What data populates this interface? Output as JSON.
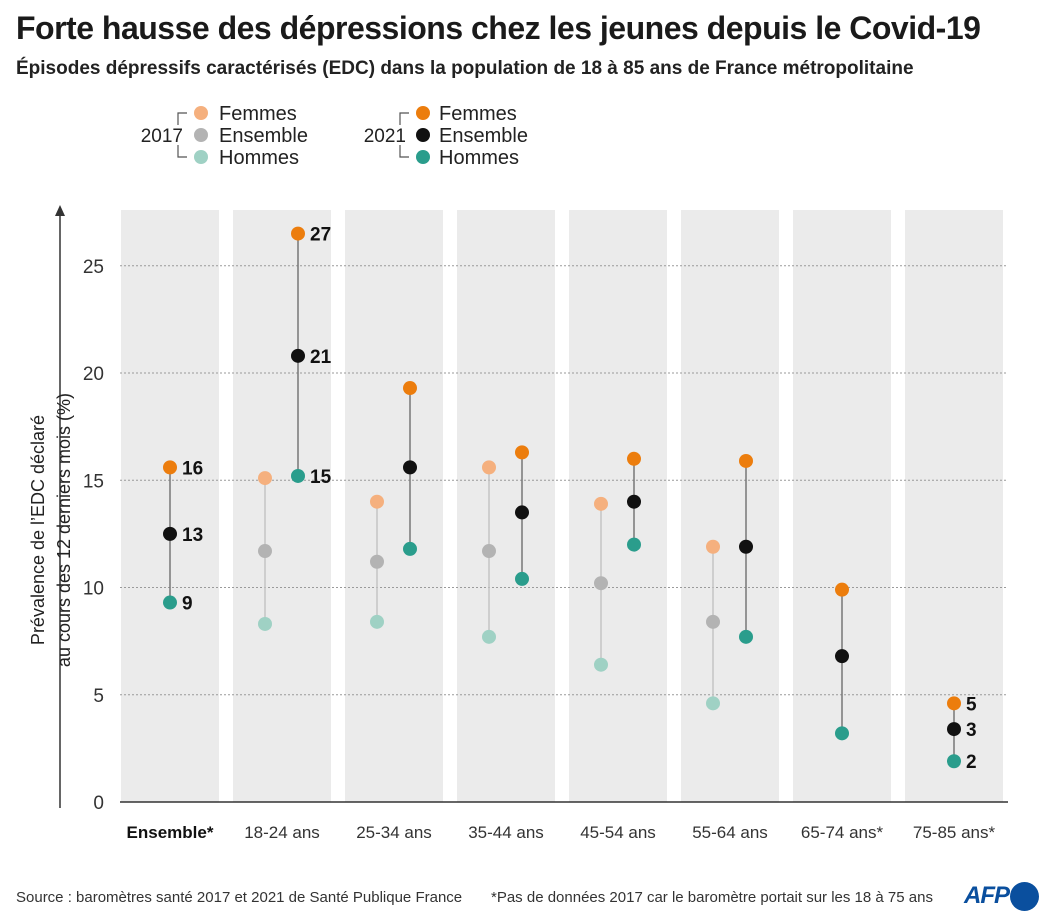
{
  "title": "Forte hausse des dépressions chez les jeunes depuis le Covid-19",
  "subtitle": "Épisodes dépressifs caractérisés (EDC) dans la population de 18 à 85 ans de France métropolitaine",
  "legend": {
    "groups": [
      {
        "year": "2017",
        "items": [
          {
            "label": "Femmes",
            "color": "#f5b07e"
          },
          {
            "label": "Ensemble",
            "color": "#b3b3b3"
          },
          {
            "label": "Hommes",
            "color": "#9fd1c4"
          }
        ]
      },
      {
        "year": "2021",
        "items": [
          {
            "label": "Femmes",
            "color": "#ec7d0d"
          },
          {
            "label": "Ensemble",
            "color": "#111111"
          },
          {
            "label": "Hommes",
            "color": "#2a9d8c"
          }
        ]
      }
    ]
  },
  "chart_data": {
    "type": "scatter",
    "ylabel_lines": [
      "Prévalence de l’EDC déclaré",
      "au cours des 12 derniers mois (%)"
    ],
    "ylim": [
      0,
      27
    ],
    "yticks": [
      0,
      5,
      10,
      15,
      20,
      25
    ],
    "grid": true,
    "categories": [
      "Ensemble*",
      "18-24 ans",
      "25-34 ans",
      "35-44 ans",
      "45-54 ans",
      "55-64 ans",
      "65-74 ans*",
      "75-85 ans*"
    ],
    "series": [
      {
        "name": "2017 Femmes",
        "color": "#f5b07e",
        "values": [
          null,
          15.1,
          14.0,
          15.6,
          13.9,
          11.9,
          null,
          null
        ]
      },
      {
        "name": "2017 Ensemble",
        "color": "#b3b3b3",
        "values": [
          null,
          11.7,
          11.2,
          11.7,
          10.2,
          8.4,
          null,
          null
        ]
      },
      {
        "name": "2017 Hommes",
        "color": "#9fd1c4",
        "values": [
          null,
          8.3,
          8.4,
          7.7,
          6.4,
          4.6,
          null,
          null
        ]
      },
      {
        "name": "2021 Femmes",
        "color": "#ec7d0d",
        "values": [
          15.6,
          26.5,
          19.3,
          16.3,
          16.0,
          15.9,
          9.9,
          4.6
        ]
      },
      {
        "name": "2021 Ensemble",
        "color": "#111111",
        "values": [
          12.5,
          20.8,
          15.6,
          13.5,
          14.0,
          11.9,
          6.8,
          3.4
        ]
      },
      {
        "name": "2021 Hommes",
        "color": "#2a9d8c",
        "values": [
          9.3,
          15.2,
          11.8,
          10.4,
          12.0,
          7.7,
          3.2,
          1.9
        ]
      }
    ],
    "data_labels": [
      {
        "category": "Ensemble*",
        "series": "2021 Femmes",
        "text": "16"
      },
      {
        "category": "Ensemble*",
        "series": "2021 Ensemble",
        "text": "13"
      },
      {
        "category": "Ensemble*",
        "series": "2021 Hommes",
        "text": "9"
      },
      {
        "category": "18-24 ans",
        "series": "2021 Femmes",
        "text": "27"
      },
      {
        "category": "18-24 ans",
        "series": "2021 Ensemble",
        "text": "21"
      },
      {
        "category": "18-24 ans",
        "series": "2021 Hommes",
        "text": "15"
      },
      {
        "category": "75-85 ans*",
        "series": "2021 Femmes",
        "text": "5"
      },
      {
        "category": "75-85 ans*",
        "series": "2021 Ensemble",
        "text": "3"
      },
      {
        "category": "75-85 ans*",
        "series": "2021 Hommes",
        "text": "2"
      }
    ]
  },
  "footer": {
    "source": "Source : baromètres santé 2017 et 2021 de Santé Publique France",
    "note": "*Pas de données 2017 car le baromètre portait sur les 18 à 75 ans"
  },
  "logo": {
    "text": "AFP",
    "color": "#0a4f9e"
  }
}
